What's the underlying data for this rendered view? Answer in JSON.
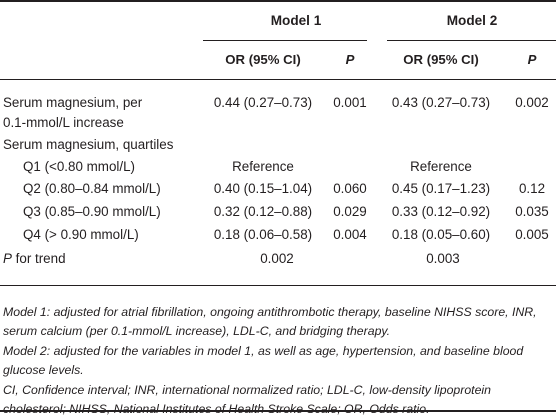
{
  "header": {
    "model1": "Model 1",
    "model2": "Model 2",
    "or_ci": "OR (95% CI)",
    "p": "P"
  },
  "rows": [
    {
      "label": "Serum magnesium, per",
      "label2": "0.1-mmol/L increase",
      "or1": "0.44 (0.27–0.73)",
      "p1": "0.001",
      "or2": "0.43 (0.27–0.73)",
      "p2": "0.002"
    },
    {
      "label": "Serum magnesium, quartiles"
    },
    {
      "label": "Q1 (<0.80 mmol/L)",
      "or1": "Reference",
      "or2": "Reference"
    },
    {
      "label": "Q2 (0.80–0.84 mmol/L)",
      "or1": "0.40 (0.15–1.04)",
      "p1": "0.060",
      "or2": "0.45 (0.17–1.23)",
      "p2": "0.12"
    },
    {
      "label": "Q3 (0.85–0.90 mmol/L)",
      "or1": "0.32 (0.12–0.88)",
      "p1": "0.029",
      "or2": "0.33 (0.12–0.92)",
      "p2": "0.035"
    },
    {
      "label": "Q4 (> 0.90 mmol/L)",
      "or1": "0.18 (0.06–0.58)",
      "p1": "0.004",
      "or2": "0.18 (0.05–0.60)",
      "p2": "0.005"
    },
    {
      "label_italic": "P",
      "label": " for trend",
      "or1": "0.002",
      "or2": "0.003"
    }
  ],
  "notes": [
    "Model 1: adjusted for atrial fibrillation, ongoing antithrombotic therapy, baseline NIHSS score, INR, serum calcium (per 0.1-mmol/L increase), LDL-C, and bridging therapy.",
    "Model 2: adjusted for the variables in model 1, as well as age, hypertension, and baseline blood glucose levels.",
    "CI, Confidence interval; INR, international normalized ratio; LDL-C, low-density lipoprotein cholesterol; NIHSS, National Institutes of Health Stroke Scale; OR, Odds ratio."
  ]
}
